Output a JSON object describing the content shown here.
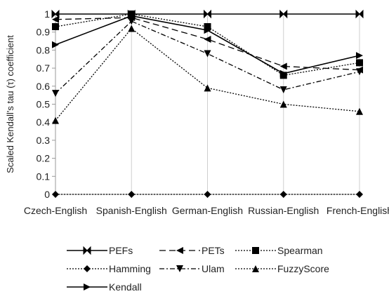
{
  "chart_data": {
    "type": "line",
    "title": "",
    "xlabel": "",
    "ylabel": "Scaled Kendall's tau (τ) coefficient",
    "ylim": [
      0,
      1
    ],
    "yticks": [
      0,
      0.1,
      0.2,
      0.3,
      0.4,
      0.5,
      0.6,
      0.7,
      0.8,
      0.9,
      1
    ],
    "grid": "vertical-only",
    "legend_position": "bottom",
    "categories": [
      "Czech-English",
      "Spanish-English",
      "German-English",
      "Russian-English",
      "French-English"
    ],
    "series": [
      {
        "name": "PEFs",
        "marker": "bowtie",
        "dash": "solid",
        "values": [
          1,
          1,
          1,
          1,
          1
        ]
      },
      {
        "name": "PETs",
        "marker": "triangle-left",
        "dash": "longdash",
        "values": [
          0.97,
          0.98,
          0.86,
          0.71,
          0.69
        ]
      },
      {
        "name": "Spearman",
        "marker": "square",
        "dash": "dotted",
        "values": [
          0.93,
          1.0,
          0.93,
          0.66,
          0.73
        ]
      },
      {
        "name": "Hamming",
        "marker": "diamond",
        "dash": "dotted",
        "values": [
          0,
          0,
          0,
          0,
          0
        ]
      },
      {
        "name": "Ulam",
        "marker": "triangle-down",
        "dash": "dashdot",
        "values": [
          0.56,
          0.96,
          0.78,
          0.58,
          0.68
        ]
      },
      {
        "name": "FuzzyScore",
        "marker": "triangle-up",
        "dash": "dotted",
        "values": [
          0.41,
          0.92,
          0.59,
          0.5,
          0.46
        ]
      },
      {
        "name": "Kendall",
        "marker": "triangle-right",
        "dash": "solid",
        "values": [
          0.83,
          0.99,
          0.91,
          0.67,
          0.77
        ]
      }
    ]
  }
}
